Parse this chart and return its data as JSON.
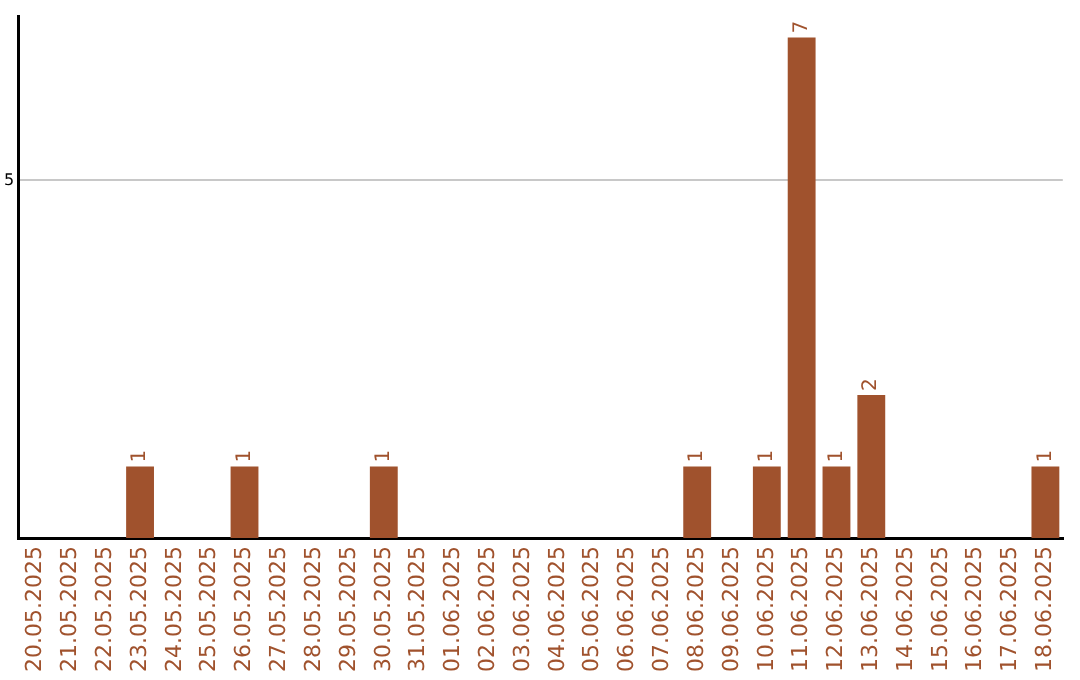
{
  "chart_data": {
    "type": "bar",
    "categories": [
      "20.05.2025",
      "21.05.2025",
      "22.05.2025",
      "23.05.2025",
      "24.05.2025",
      "25.05.2025",
      "26.05.2025",
      "27.05.2025",
      "28.05.2025",
      "29.05.2025",
      "30.05.2025",
      "31.05.2025",
      "01.06.2025",
      "02.06.2025",
      "03.06.2025",
      "04.06.2025",
      "05.06.2025",
      "06.06.2025",
      "07.06.2025",
      "08.06.2025",
      "09.06.2025",
      "10.06.2025",
      "11.06.2025",
      "12.06.2025",
      "13.06.2025",
      "14.06.2025",
      "15.06.2025",
      "16.06.2025",
      "17.06.2025",
      "18.06.2025"
    ],
    "values": [
      0,
      0,
      0,
      1,
      0,
      0,
      1,
      0,
      0,
      0,
      1,
      0,
      0,
      0,
      0,
      0,
      0,
      0,
      0,
      1,
      0,
      1,
      7,
      1,
      2,
      0,
      0,
      0,
      0,
      1
    ],
    "value_labels": [
      null,
      null,
      null,
      "1",
      null,
      null,
      "1",
      null,
      null,
      null,
      "1",
      null,
      null,
      null,
      null,
      null,
      null,
      null,
      null,
      "1",
      null,
      "1",
      "7",
      "1",
      "2",
      null,
      null,
      null,
      null,
      "1"
    ],
    "color": "#a0522d",
    "ylim": [
      0,
      7.3
    ],
    "yticks": [
      5
    ],
    "grid": "y",
    "legend": false
  }
}
